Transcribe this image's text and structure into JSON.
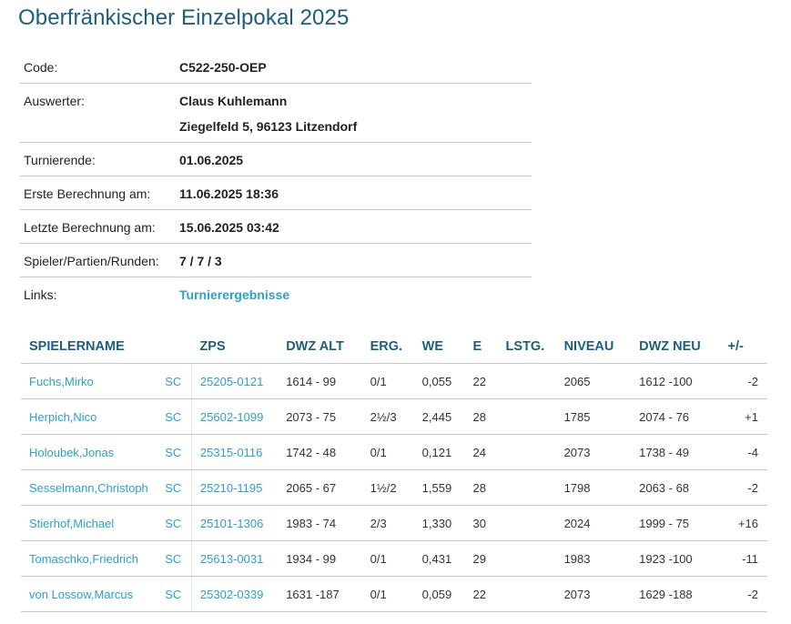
{
  "title": "Oberfränkischer Einzelpokal 2025",
  "info": {
    "code_label": "Code:",
    "code_value": "C522-250-OEP",
    "auswerter_label": "Auswerter:",
    "auswerter_name": "Claus Kuhlemann",
    "auswerter_address": "Ziegelfeld 5, 96123 Litzendorf",
    "turnierende_label": "Turnierende:",
    "turnierende_value": "01.06.2025",
    "erste_label": "Erste Berechnung am:",
    "erste_value": "11.06.2025 18:36",
    "letzte_label": "Letzte Berechnung am:",
    "letzte_value": "15.06.2025 03:42",
    "spieler_label": "Spieler/Partien/Runden:",
    "spieler_value": "7 / 7 / 3",
    "links_label": "Links:",
    "links_value": "Turnierergebnisse"
  },
  "table": {
    "headers": {
      "name": "SPIELERNAME",
      "club": "",
      "zps": "ZPS",
      "dwz_alt": "DWZ ALT",
      "erg": "ERG.",
      "we": "WE",
      "e": "E",
      "lstg": "LSTG.",
      "niveau": "NIVEAU",
      "dwz_neu": "DWZ NEU",
      "diff": "+/-"
    },
    "rows": [
      {
        "name": "Fuchs,Mirko",
        "club": "SC",
        "zps": "25205-0121",
        "dwz_alt": "1614 - 99",
        "erg": "0/1",
        "we": "0,055",
        "e": "22",
        "lstg": "",
        "niveau": "2065",
        "dwz_neu": "1612 -100",
        "diff": "-2"
      },
      {
        "name": "Herpich,Nico",
        "club": "SC",
        "zps": "25602-1099",
        "dwz_alt": "2073 - 75",
        "erg": "2½/3",
        "we": "2,445",
        "e": "28",
        "lstg": "",
        "niveau": "1785",
        "dwz_neu": "2074 - 76",
        "diff": "+1"
      },
      {
        "name": "Holoubek,Jonas",
        "club": "SC",
        "zps": "25315-0116",
        "dwz_alt": "1742 - 48",
        "erg": "0/1",
        "we": "0,121",
        "e": "24",
        "lstg": "",
        "niveau": "2073",
        "dwz_neu": "1738 - 49",
        "diff": "-4"
      },
      {
        "name": "Sesselmann,Christoph",
        "club": "SC",
        "zps": "25210-1195",
        "dwz_alt": "2065 - 67",
        "erg": "1½/2",
        "we": "1,559",
        "e": "28",
        "lstg": "",
        "niveau": "1798",
        "dwz_neu": "2063 - 68",
        "diff": "-2"
      },
      {
        "name": "Stierhof,Michael",
        "club": "SC",
        "zps": "25101-1306",
        "dwz_alt": "1983 - 74",
        "erg": "2/3",
        "we": "1,330",
        "e": "30",
        "lstg": "",
        "niveau": "2024",
        "dwz_neu": "1999 - 75",
        "diff": "+16"
      },
      {
        "name": "Tomaschko,Friedrich",
        "club": "SC",
        "zps": "25613-0031",
        "dwz_alt": "1934 - 99",
        "erg": "0/1",
        "we": "0,431",
        "e": "29",
        "lstg": "",
        "niveau": "1983",
        "dwz_neu": "1923 -100",
        "diff": "-11"
      },
      {
        "name": "von Lossow,Marcus",
        "club": "SC",
        "zps": "25302-0339",
        "dwz_alt": "1631 -187",
        "erg": "0/1",
        "we": "0,059",
        "e": "22",
        "lstg": "",
        "niveau": "2073",
        "dwz_neu": "1629 -188",
        "diff": "-2"
      }
    ]
  }
}
